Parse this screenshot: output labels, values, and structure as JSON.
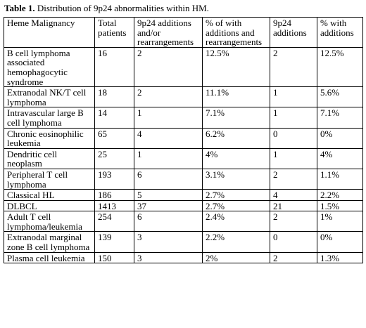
{
  "caption": {
    "label": "Table 1.",
    "text": " Distribution of 9p24 abnormalities within HM."
  },
  "headers": [
    "Heme Malignancy",
    "Total patients",
    "9p24 additions and/or rearrangements",
    "% of with additions and rearrangements",
    "9p24 additions",
    "% with additions"
  ],
  "rows": [
    {
      "malignancy": "B cell lymphoma associated hemophagocytic syndrome",
      "total": "16",
      "add_rearr": "2",
      "pct_add_rearr": "12.5%",
      "additions": "2",
      "pct_additions": "12.5%"
    },
    {
      "malignancy": "Extranodal NK/T cell lymphoma",
      "total": "18",
      "add_rearr": "2",
      "pct_add_rearr": "11.1%",
      "additions": "1",
      "pct_additions": "5.6%"
    },
    {
      "malignancy": "Intravascular large B cell lymphoma",
      "total": "14",
      "add_rearr": "1",
      "pct_add_rearr": "7.1%",
      "additions": "1",
      "pct_additions": "7.1%"
    },
    {
      "malignancy": "Chronic eosinophilic leukemia",
      "total": "65",
      "add_rearr": "4",
      "pct_add_rearr": "6.2%",
      "additions": "0",
      "pct_additions": "0%"
    },
    {
      "malignancy": "Dendritic cell neoplasm",
      "total": "25",
      "add_rearr": "1",
      "pct_add_rearr": "4%",
      "additions": "1",
      "pct_additions": "4%"
    },
    {
      "malignancy": "Peripheral T cell lymphoma",
      "total": "193",
      "add_rearr": "6",
      "pct_add_rearr": "3.1%",
      "additions": "2",
      "pct_additions": "1.1%"
    },
    {
      "malignancy": "Classical HL",
      "total": "186",
      "add_rearr": "5",
      "pct_add_rearr": "2.7%",
      "additions": "4",
      "pct_additions": "2.2%"
    },
    {
      "malignancy": "DLBCL",
      "total": "1413",
      "add_rearr": "37",
      "pct_add_rearr": "2.7%",
      "additions": "21",
      "pct_additions": "1.5%"
    },
    {
      "malignancy": "Adult T cell lymphoma/leukemia",
      "total": "254",
      "add_rearr": "6",
      "pct_add_rearr": "2.4%",
      "additions": "2",
      "pct_additions": "1%"
    },
    {
      "malignancy": "Extranodal marginal zone B cell lymphoma",
      "total": "139",
      "add_rearr": "3",
      "pct_add_rearr": "2.2%",
      "additions": "0",
      "pct_additions": "0%"
    },
    {
      "malignancy": "Plasma cell leukemia",
      "total": "150",
      "add_rearr": "3",
      "pct_add_rearr": "2%",
      "additions": "2",
      "pct_additions": "1.3%"
    }
  ]
}
